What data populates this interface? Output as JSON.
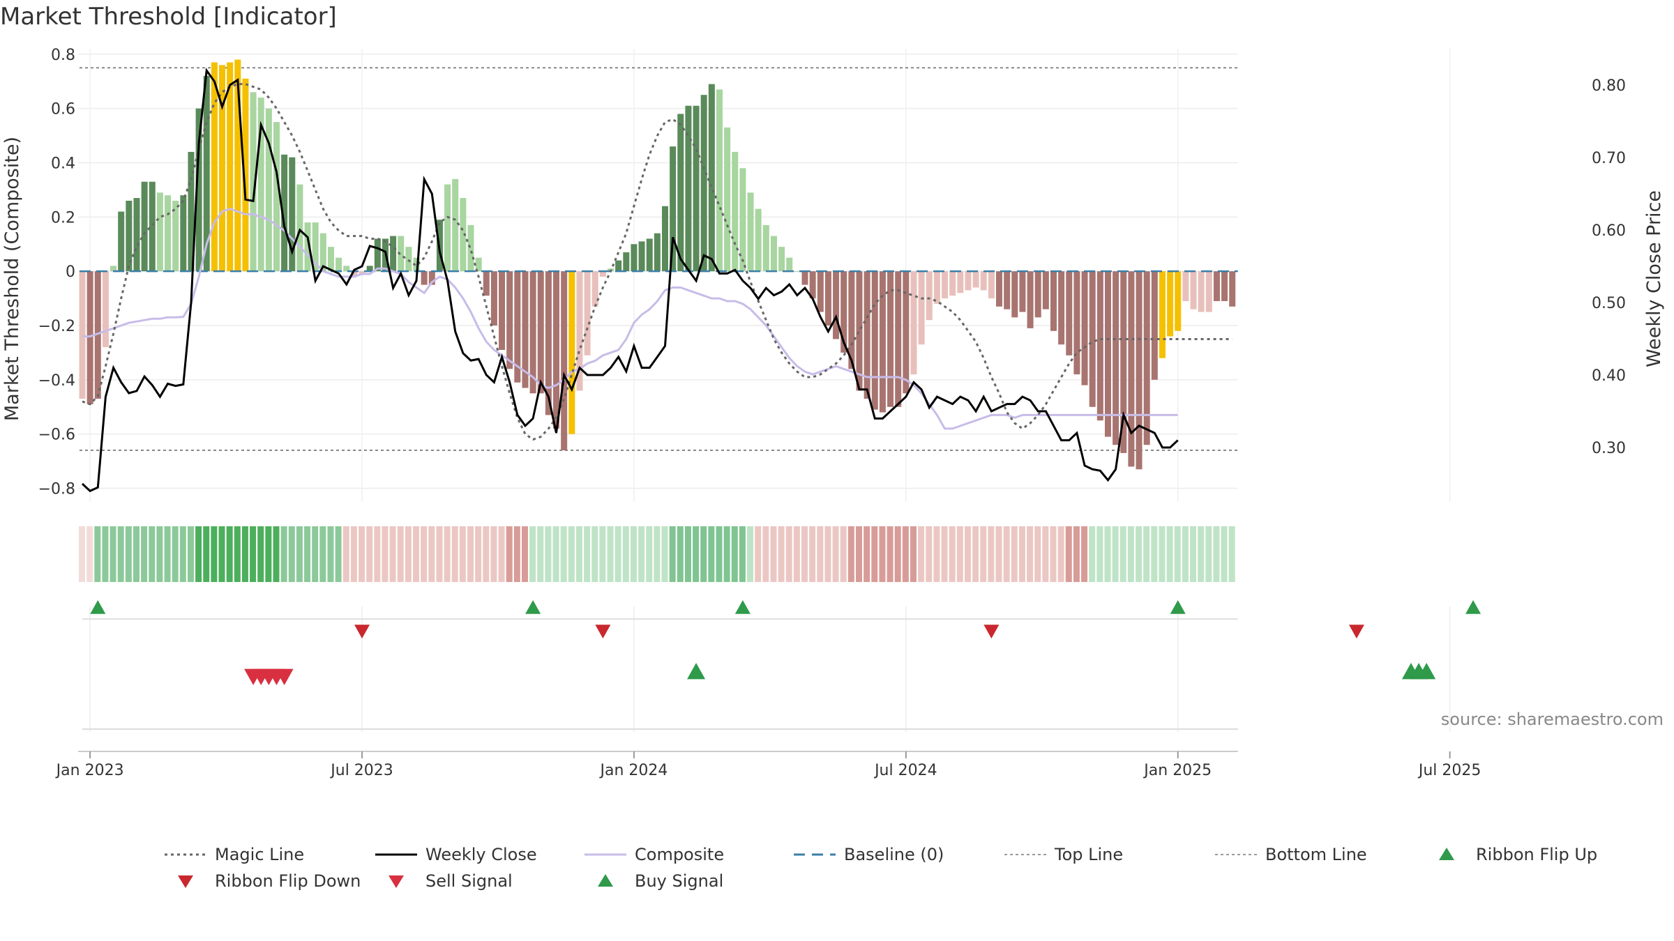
{
  "title": "Market Threshold [Indicator]",
  "colors": {
    "strong_up": "#5a8a5a",
    "weak_up": "#a8d5a0",
    "strong_down": "#a87470",
    "weak_down": "#e8c0bb",
    "extreme": "#f5c000",
    "weekly_close": "#000000",
    "composite": "#c8bce8",
    "magic_line": "#666666",
    "baseline": "#3a7fa8",
    "threshold_line": "#888888",
    "buy": "#2e9a4a",
    "sell": "#d83040",
    "ribbon_flip_down": "#c8282e"
  },
  "chart_data": {
    "type": "bar",
    "title": "Market Threshold [Indicator]",
    "x_tick_labels": [
      "Jan 2023",
      "Jul 2023",
      "Jan 2024",
      "Jul 2024",
      "Jan 2025",
      "Jul 2025"
    ],
    "x_tick_weeks": [
      1,
      36,
      71,
      106,
      141,
      176
    ],
    "ylabel_left": "Market Threshold (Composite)",
    "ylabel_right": "Weekly Close Price",
    "ylim_left": [
      -0.85,
      0.82
    ],
    "ylim_right": [
      0.225,
      0.85
    ],
    "yticks_left": [
      "0.8",
      "0.6",
      "0.4",
      "0.2",
      "0",
      "−0.2",
      "−0.4",
      "−0.6",
      "−0.8"
    ],
    "yticks_left_values": [
      0.8,
      0.6,
      0.4,
      0.2,
      0,
      -0.2,
      -0.4,
      -0.6,
      -0.8
    ],
    "yticks_right": [
      "0.80",
      "0.70",
      "0.60",
      "0.50",
      "0.40",
      "0.30"
    ],
    "yticks_right_values": [
      0.8,
      0.7,
      0.6,
      0.5,
      0.4,
      0.3
    ],
    "top_line": 0.75,
    "bottom_line": -0.66,
    "composite_bars": [
      -0.47,
      -0.49,
      -0.47,
      -0.28,
      0.02,
      0.22,
      0.26,
      0.27,
      0.33,
      0.33,
      0.29,
      0.28,
      0.26,
      0.28,
      0.44,
      0.6,
      0.72,
      0.77,
      0.76,
      0.77,
      0.78,
      0.71,
      0.66,
      0.64,
      0.6,
      0.55,
      0.43,
      0.42,
      0.32,
      0.18,
      0.18,
      0.14,
      0.09,
      0.05,
      0.02,
      -0.02,
      -0.01,
      0.02,
      0.12,
      0.12,
      0.13,
      0.13,
      0.09,
      0.05,
      -0.05,
      -0.05,
      0.19,
      0.32,
      0.34,
      0.27,
      0.17,
      0.05,
      -0.09,
      -0.2,
      -0.29,
      -0.36,
      -0.41,
      -0.43,
      -0.45,
      -0.45,
      -0.53,
      -0.58,
      -0.66,
      -0.6,
      -0.44,
      -0.31,
      -0.13,
      -0.02,
      0.01,
      0.04,
      0.07,
      0.1,
      0.11,
      0.12,
      0.14,
      0.24,
      0.46,
      0.58,
      0.61,
      0.61,
      0.65,
      0.69,
      0.67,
      0.53,
      0.44,
      0.38,
      0.29,
      0.23,
      0.17,
      0.13,
      0.09,
      0.05,
      0.0,
      -0.05,
      -0.1,
      -0.15,
      -0.2,
      -0.25,
      -0.3,
      -0.36,
      -0.44,
      -0.47,
      -0.51,
      -0.52,
      -0.5,
      -0.5,
      -0.45,
      -0.38,
      -0.27,
      -0.18,
      -0.12,
      -0.1,
      -0.09,
      -0.08,
      -0.07,
      -0.06,
      -0.07,
      -0.1,
      -0.13,
      -0.14,
      -0.17,
      -0.15,
      -0.21,
      -0.17,
      -0.14,
      -0.22,
      -0.27,
      -0.31,
      -0.38,
      -0.42,
      -0.5,
      -0.55,
      -0.61,
      -0.64,
      -0.67,
      -0.72,
      -0.73,
      -0.64,
      -0.4,
      -0.32,
      -0.24,
      -0.22,
      -0.11,
      -0.14,
      -0.15,
      -0.15,
      -0.11,
      -0.11,
      -0.13
    ],
    "bar_color_codes": "WSSWWSSSSSWWWSSSSYYYYYWWWWSSWWWWWWWDWSSSSWWDSSSWWWWDSSSSSSSSSSSYWWWWWSSSSSSSSSSSSSWWWWWWWWWWWSSSSSSSSSSSSSSDWWWWWWWWWWSSSSSSSSSSSSSSSSSSSSSYYYWWWWSSSSS",
    "weekly_close": [
      0.25,
      0.24,
      0.245,
      0.37,
      0.41,
      0.39,
      0.375,
      0.378,
      0.398,
      0.386,
      0.37,
      0.388,
      0.385,
      0.387,
      0.5,
      0.72,
      0.82,
      0.805,
      0.77,
      0.8,
      0.807,
      0.642,
      0.64,
      0.745,
      0.72,
      0.68,
      0.605,
      0.57,
      0.6,
      0.59,
      0.53,
      0.55,
      0.545,
      0.54,
      0.525,
      0.545,
      0.55,
      0.578,
      0.575,
      0.57,
      0.52,
      0.54,
      0.51,
      0.53,
      0.67,
      0.65,
      0.57,
      0.53,
      0.46,
      0.43,
      0.42,
      0.422,
      0.4,
      0.39,
      0.425,
      0.39,
      0.345,
      0.33,
      0.34,
      0.39,
      0.37,
      0.32,
      0.4,
      0.38,
      0.41,
      0.4,
      0.4,
      0.4,
      0.41,
      0.425,
      0.405,
      0.44,
      0.41,
      0.41,
      0.425,
      0.44,
      0.59,
      0.56,
      0.545,
      0.53,
      0.565,
      0.56,
      0.54,
      0.54,
      0.545,
      0.53,
      0.52,
      0.505,
      0.52,
      0.51,
      0.515,
      0.525,
      0.51,
      0.52,
      0.505,
      0.48,
      0.46,
      0.48,
      0.445,
      0.42,
      0.38,
      0.38,
      0.34,
      0.34,
      0.35,
      0.36,
      0.37,
      0.39,
      0.38,
      0.355,
      0.37,
      0.365,
      0.36,
      0.37,
      0.365,
      0.35,
      0.37,
      0.35,
      0.355,
      0.36,
      0.36,
      0.37,
      0.365,
      0.35,
      0.35,
      0.33,
      0.31,
      0.31,
      0.32,
      0.275,
      0.27,
      0.268,
      0.255,
      0.27,
      0.345,
      0.32,
      0.33,
      0.325,
      0.32,
      0.3,
      0.3,
      0.31
    ],
    "composite_line": [
      -0.24,
      -0.24,
      -0.23,
      -0.22,
      -0.21,
      -0.2,
      -0.19,
      -0.185,
      -0.18,
      -0.175,
      -0.175,
      -0.17,
      -0.17,
      -0.168,
      -0.12,
      -0.02,
      0.1,
      0.18,
      0.22,
      0.23,
      0.22,
      0.21,
      0.21,
      0.2,
      0.19,
      0.17,
      0.15,
      0.12,
      0.09,
      0.06,
      0.03,
      0.0,
      -0.01,
      -0.02,
      -0.02,
      -0.02,
      -0.01,
      -0.01,
      0.01,
      0.01,
      0.0,
      -0.01,
      -0.04,
      -0.06,
      -0.08,
      -0.04,
      -0.02,
      -0.03,
      -0.06,
      -0.1,
      -0.15,
      -0.21,
      -0.26,
      -0.29,
      -0.31,
      -0.33,
      -0.35,
      -0.37,
      -0.39,
      -0.42,
      -0.43,
      -0.42,
      -0.4,
      -0.37,
      -0.36,
      -0.34,
      -0.33,
      -0.31,
      -0.3,
      -0.29,
      -0.25,
      -0.19,
      -0.16,
      -0.14,
      -0.11,
      -0.07,
      -0.06,
      -0.06,
      -0.07,
      -0.08,
      -0.09,
      -0.1,
      -0.1,
      -0.11,
      -0.11,
      -0.12,
      -0.14,
      -0.17,
      -0.2,
      -0.24,
      -0.28,
      -0.32,
      -0.35,
      -0.37,
      -0.38,
      -0.37,
      -0.36,
      -0.35,
      -0.36,
      -0.37,
      -0.38,
      -0.39,
      -0.39,
      -0.39,
      -0.39,
      -0.39,
      -0.4,
      -0.42,
      -0.45,
      -0.49,
      -0.53,
      -0.58,
      -0.58,
      -0.57,
      -0.56,
      -0.55,
      -0.54,
      -0.53,
      -0.53,
      -0.53,
      -0.54,
      -0.53,
      -0.53,
      -0.53,
      -0.53,
      -0.53,
      -0.53,
      -0.53,
      -0.53,
      -0.53,
      -0.53,
      -0.53,
      -0.53,
      -0.53,
      -0.53,
      -0.53,
      -0.53,
      -0.53,
      -0.53,
      -0.53,
      -0.53,
      -0.53
    ],
    "magic_line": [
      -0.48,
      -0.49,
      -0.46,
      -0.35,
      -0.23,
      -0.1,
      0.02,
      0.09,
      0.14,
      0.17,
      0.2,
      0.21,
      0.23,
      0.26,
      0.34,
      0.45,
      0.55,
      0.62,
      0.66,
      0.68,
      0.69,
      0.69,
      0.68,
      0.67,
      0.64,
      0.6,
      0.55,
      0.5,
      0.44,
      0.37,
      0.3,
      0.23,
      0.18,
      0.15,
      0.13,
      0.13,
      0.13,
      0.12,
      0.12,
      0.11,
      0.09,
      0.06,
      0.04,
      0.02,
      0.05,
      0.11,
      0.18,
      0.2,
      0.19,
      0.15,
      0.08,
      -0.02,
      -0.13,
      -0.24,
      -0.35,
      -0.45,
      -0.54,
      -0.6,
      -0.62,
      -0.61,
      -0.58,
      -0.54,
      -0.47,
      -0.38,
      -0.29,
      -0.21,
      -0.13,
      -0.06,
      0.0,
      0.07,
      0.14,
      0.24,
      0.34,
      0.43,
      0.5,
      0.55,
      0.56,
      0.54,
      0.5,
      0.45,
      0.38,
      0.31,
      0.24,
      0.17,
      0.1,
      0.04,
      -0.04,
      -0.11,
      -0.18,
      -0.25,
      -0.3,
      -0.34,
      -0.37,
      -0.39,
      -0.39,
      -0.38,
      -0.36,
      -0.34,
      -0.31,
      -0.27,
      -0.22,
      -0.17,
      -0.12,
      -0.09,
      -0.07,
      -0.07,
      -0.08,
      -0.09,
      -0.1,
      -0.1,
      -0.11,
      -0.13,
      -0.15,
      -0.18,
      -0.22,
      -0.26,
      -0.32,
      -0.39,
      -0.45,
      -0.52,
      -0.56,
      -0.58,
      -0.56,
      -0.53,
      -0.49,
      -0.44,
      -0.39,
      -0.34,
      -0.3,
      -0.28,
      -0.26,
      -0.25,
      -0.25,
      -0.25,
      -0.25,
      -0.25,
      -0.25,
      -0.25,
      -0.25,
      -0.25,
      -0.25,
      -0.25,
      -0.25,
      -0.25,
      -0.25,
      -0.25,
      -0.25,
      -0.25,
      -0.25
    ],
    "ribbon_codes": "EEDDDDDDDDDDDDDDDDDDDDDDDDDDDDDDDDCCCCCCCCCCCCCCCCCCCCCCCCBBBBBBBBBBBBBBBBBBBBBBBBBBBBBCCCCCCCCCCCCCCCCCCCCCCCCCCCCCCCCCCCCCCCCCCCBBBBBBBBBBBBBBBBBBBBBBBBBBBBBBCCCCCCCCCCCCCCCCCCCCCCCCCCCCCCCCCCCCCCCCBBBBBBBBBBBB",
    "ribbon_flip_up_weeks": [
      2,
      58,
      85,
      141,
      179
    ],
    "ribbon_flip_down_weeks": [
      36,
      67,
      117,
      164
    ],
    "sell_signal_weeks": [
      22,
      23,
      24,
      25,
      26
    ],
    "buy_signal_weeks": [
      79,
      171,
      172,
      173
    ],
    "legend": [
      "Magic Line",
      "Weekly Close",
      "Composite",
      "Baseline (0)",
      "Top Line",
      "Bottom Line",
      "Ribbon Flip Up",
      "Ribbon Flip Down",
      "Sell Signal",
      "Buy Signal"
    ]
  },
  "source_label": "source: sharemaestro.com"
}
